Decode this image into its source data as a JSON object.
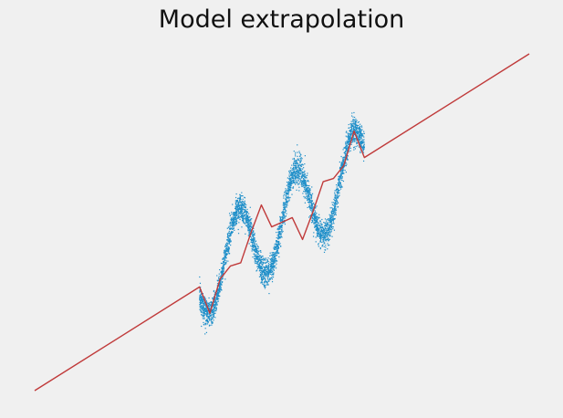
{
  "chart_data": {
    "type": "line",
    "title": "Model extrapolation",
    "xlabel": "",
    "ylabel": "",
    "grid": false,
    "legend": "none",
    "axes_visible": false,
    "xlim": [
      -12,
      12
    ],
    "ylim": [
      -12,
      12
    ],
    "series": [
      {
        "kind": "scatter",
        "marker_color": "#1f8fc9",
        "x_range": [
          -4,
          4
        ],
        "y_function": "x + 3*sin(2.25*x) with noise",
        "noise_sd": 0.5,
        "point_count": 4000
      },
      {
        "kind": "line",
        "line_color": "#c03a3a",
        "x": [
          -12,
          -4,
          -3.5,
          -3,
          -2.5,
          -2,
          -1.5,
          -1,
          -0.5,
          0,
          0.5,
          1,
          1.5,
          2,
          2.5,
          3,
          3.5,
          4,
          12
        ],
        "y": [
          -12,
          -4.61,
          -6.49,
          -4.04,
          -3.12,
          -2.89,
          -0.73,
          1.23,
          -0.33,
          0,
          0.33,
          -1.23,
          0.73,
          2.89,
          3.12,
          4.04,
          6.49,
          4.61,
          12
        ]
      }
    ]
  },
  "colors": {
    "background": "#f0f0f0",
    "scatter": "#1f8fc9",
    "line": "#c03a3a"
  }
}
